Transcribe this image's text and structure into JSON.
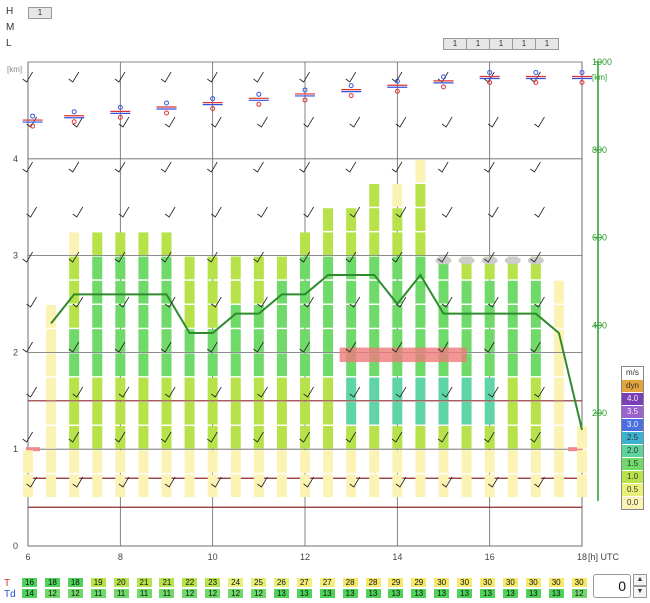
{
  "layers": {
    "labels": [
      "H",
      "M",
      "L"
    ],
    "h_boxes": [
      "1"
    ],
    "l_boxes": [
      "1",
      "1",
      "1",
      "1",
      "1"
    ]
  },
  "axes": {
    "y_left_unit": "[km]",
    "y_right_unit": "[km]",
    "x_unit": "[h] UTC"
  },
  "legend": {
    "title": "m/s",
    "entries": [
      {
        "label": "dyn",
        "color": "#e2a63c"
      },
      {
        "label": "4.0",
        "color": "#7b3fb5"
      },
      {
        "label": "3.5",
        "color": "#9a62cf"
      },
      {
        "label": "3.0",
        "color": "#4a6fe0"
      },
      {
        "label": "2.5",
        "color": "#3bb3d0"
      },
      {
        "label": "2.0",
        "color": "#5fd49a"
      },
      {
        "label": "1.5",
        "color": "#6fd96a"
      },
      {
        "label": "1.0",
        "color": "#b8e24a"
      },
      {
        "label": "0.5",
        "color": "#e8f07a"
      },
      {
        "label": "0.0",
        "color": "#fbf3b4"
      }
    ]
  },
  "table": {
    "t_label": "T",
    "td_label": "Td",
    "T": [
      "16",
      "18",
      "18",
      "19",
      "20",
      "21",
      "21",
      "22",
      "23",
      "24",
      "25",
      "26",
      "27",
      "27",
      "28",
      "28",
      "29",
      "29",
      "30",
      "30",
      "30",
      "30",
      "30",
      "30",
      "30"
    ],
    "Td": [
      "14",
      "12",
      "12",
      "11",
      "11",
      "11",
      "11",
      "12",
      "12",
      "12",
      "12",
      "13",
      "13",
      "13",
      "13",
      "13",
      "13",
      "13",
      "13",
      "13",
      "13",
      "13",
      "13",
      "13",
      "12"
    ],
    "T_colors": [
      "#4fd25a",
      "#4fd25a",
      "#4fd25a",
      "#b8e24a",
      "#b8e24a",
      "#b8e24a",
      "#b8e24a",
      "#b8e24a",
      "#b8e24a",
      "#e8f07a",
      "#e8f07a",
      "#e8f07a",
      "#f3ed7a",
      "#f3ed7a",
      "#f5e86a",
      "#f5e86a",
      "#f5e86a",
      "#f5e86a",
      "#f5e86a",
      "#f5e86a",
      "#f5e86a",
      "#f5e86a",
      "#f5e86a",
      "#f5e86a",
      "#f5e86a"
    ],
    "Td_colors": [
      "#4fd25a",
      "#6fd96a",
      "#6fd96a",
      "#6fd96a",
      "#6fd96a",
      "#6fd96a",
      "#6fd96a",
      "#6fd96a",
      "#6fd96a",
      "#6fd96a",
      "#6fd96a",
      "#4fd25a",
      "#4fd25a",
      "#4fd25a",
      "#4fd25a",
      "#4fd25a",
      "#4fd25a",
      "#4fd25a",
      "#4fd25a",
      "#4fd25a",
      "#4fd25a",
      "#4fd25a",
      "#4fd25a",
      "#4fd25a",
      "#6fd96a"
    ]
  },
  "stepper": {
    "value": "0"
  },
  "chart_data": {
    "type": "bar",
    "x_ticks": [
      "6",
      "8",
      "10",
      "12",
      "14",
      "16",
      "18"
    ],
    "y_left_ticks": [
      "0",
      "1",
      "2",
      "3",
      "4"
    ],
    "y_right_ticks": [
      "200",
      "400",
      "600",
      "800",
      "1000"
    ],
    "xlim": [
      6,
      18
    ],
    "ylim_left": [
      0,
      5
    ],
    "ylim_right": [
      0,
      1000
    ],
    "x": [
      6.0,
      6.5,
      7.0,
      7.5,
      8.0,
      8.5,
      9.0,
      9.5,
      10.0,
      10.5,
      11.0,
      11.5,
      12.0,
      12.5,
      13.0,
      13.5,
      14.0,
      14.5,
      15.0,
      15.5,
      16.0,
      16.5,
      17.0,
      17.5,
      18.0
    ],
    "top": [
      1.0,
      2.5,
      3.2,
      3.2,
      3.2,
      3.2,
      3.2,
      3.0,
      3.0,
      3.0,
      3.0,
      3.0,
      3.2,
      3.5,
      3.4,
      3.6,
      3.6,
      3.8,
      3.0,
      3.0,
      3.0,
      3.0,
      3.0,
      2.7,
      1.2
    ],
    "green_from": [
      null,
      null,
      1.0,
      1.0,
      1.0,
      1.0,
      1.0,
      1.0,
      1.0,
      1.0,
      1.0,
      1.0,
      1.0,
      1.0,
      1.0,
      1.0,
      1.0,
      1.0,
      1.0,
      1.0,
      1.0,
      1.0,
      1.0,
      null,
      null
    ],
    "green_to": [
      null,
      null,
      2.2,
      2.8,
      2.8,
      2.8,
      2.8,
      2.2,
      2.2,
      2.4,
      2.5,
      2.6,
      2.8,
      3.0,
      3.0,
      3.0,
      2.8,
      3.0,
      2.8,
      2.7,
      2.7,
      2.7,
      2.7,
      null,
      null
    ],
    "teal_from": [
      null,
      null,
      null,
      null,
      null,
      null,
      null,
      null,
      null,
      null,
      null,
      null,
      null,
      null,
      1.1,
      1.1,
      1.1,
      1.1,
      1.1,
      1.1,
      1.1,
      null,
      null,
      null,
      null
    ],
    "teal_to": [
      null,
      null,
      null,
      null,
      null,
      null,
      null,
      null,
      null,
      null,
      null,
      null,
      null,
      null,
      1.6,
      1.6,
      1.6,
      1.6,
      1.6,
      1.6,
      1.6,
      null,
      null,
      null,
      null
    ],
    "boundary_layer": [
      null,
      2.3,
      2.6,
      2.6,
      2.6,
      2.6,
      2.6,
      2.2,
      2.2,
      2.4,
      2.4,
      2.6,
      2.6,
      2.8,
      2.8,
      2.8,
      2.5,
      2.8,
      2.4,
      2.4,
      2.4,
      2.4,
      2.4,
      2.2,
      1.2
    ],
    "inversion_bands": [
      {
        "from_x": 12.75,
        "to_x": 15.5,
        "y_from": 1.9,
        "y_to": 2.05
      }
    ],
    "cloud_marks_x": [
      15.0,
      15.5,
      16.0,
      16.5,
      17.0
    ],
    "cloud_marks_y": 2.95,
    "brown_lines": [
      0.98,
      0.97,
      0.97
    ],
    "brown_line_levels": [
      0.4,
      0.7,
      1.5
    ],
    "red_ticks_y": 1.0,
    "temperature_profile_y": [
      0.85,
      0.85,
      0.9,
      0.9,
      0.95,
      0.95,
      0.95,
      1.0,
      1.0,
      1.0,
      1.0,
      1.0,
      1.0,
      1.0,
      1.0,
      1.0,
      1.05,
      1.05,
      1.05,
      1.1,
      1.1,
      1.1,
      1.15,
      1.15,
      1.15
    ]
  }
}
